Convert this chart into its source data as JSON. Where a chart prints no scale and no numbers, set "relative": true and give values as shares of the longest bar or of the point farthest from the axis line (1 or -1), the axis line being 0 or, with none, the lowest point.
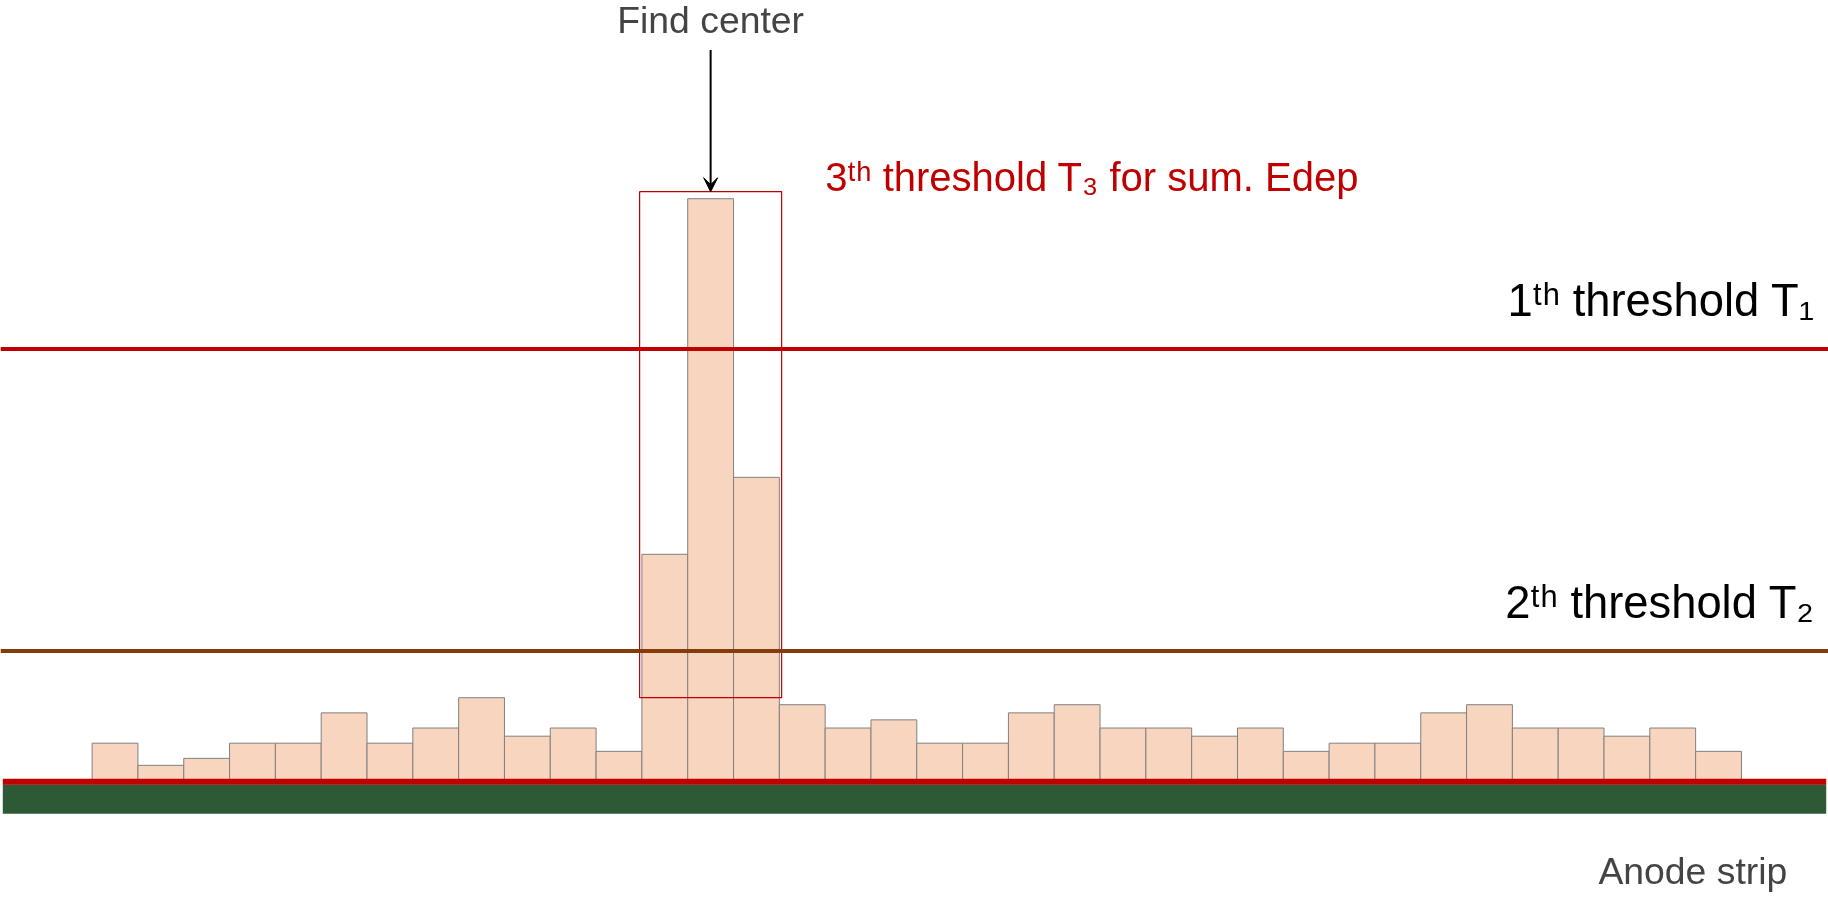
{
  "chart_data": {
    "type": "bar",
    "relative": true,
    "categories": [
      null,
      null,
      null,
      null,
      null,
      null,
      null,
      null,
      null,
      null,
      null,
      null,
      null,
      null,
      null,
      null,
      null,
      null,
      null,
      null,
      null,
      null,
      null,
      null,
      null,
      null,
      null,
      null,
      null,
      null,
      null,
      null,
      null,
      null,
      null,
      null
    ],
    "values": [
      0.066,
      0.028,
      0.04,
      0.066,
      0.066,
      0.118,
      0.066,
      0.092,
      0.144,
      0.078,
      0.092,
      0.052,
      0.39,
      1.0,
      0.522,
      0.132,
      0.092,
      0.106,
      0.066,
      0.066,
      0.118,
      0.132,
      0.092,
      0.092,
      0.078,
      0.092,
      0.052,
      0.066,
      0.066,
      0.118,
      0.132,
      0.092,
      0.092,
      0.078,
      0.092,
      0.052
    ],
    "color": "#f8d5bf",
    "ref_lines": [
      {
        "axis": "y",
        "value": 0.742,
        "label": "1ᵗʰ threshold T₁",
        "color": "#c00000"
      },
      {
        "axis": "y",
        "value": 0.224,
        "label": "2ᵗʰ threshold T₂",
        "color": "#843c0c"
      }
    ],
    "annotations": [
      "Find center",
      "3ᵗʰ threshold T₃ for sum. Edep",
      "Anode strip"
    ],
    "grid": false
  }
}
